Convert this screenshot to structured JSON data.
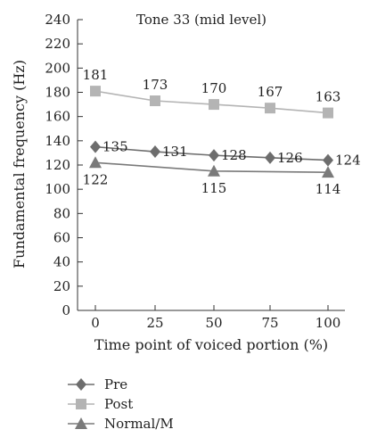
{
  "chart_data": {
    "type": "line",
    "title": "Tone 33 (mid level)",
    "xlabel": "Time point of voiced portion (%)",
    "ylabel": "Fundamental frequency (Hz)",
    "x": [
      0,
      25,
      50,
      75,
      100
    ],
    "x_tick_labels": [
      "0",
      "25",
      "50",
      "75",
      "100"
    ],
    "ylim": [
      0,
      240
    ],
    "y_ticks": [
      0,
      20,
      40,
      60,
      80,
      100,
      120,
      140,
      160,
      180,
      200,
      220,
      240
    ],
    "y_tick_labels": [
      "0",
      "20",
      "40",
      "60",
      "80",
      "100",
      "120",
      "140",
      "160",
      "180",
      "200",
      "220",
      "240"
    ],
    "grid": false,
    "legend_position": "bottom-left",
    "series": [
      {
        "name": "Pre",
        "marker": "diamond",
        "color": "#6d6d6d",
        "values": [
          135,
          131,
          128,
          126,
          124
        ],
        "labels": [
          "135",
          "131",
          "128",
          "126",
          "124"
        ]
      },
      {
        "name": "Post",
        "marker": "square",
        "color": "#b4b4b4",
        "values": [
          181,
          173,
          170,
          167,
          163
        ],
        "labels": [
          "181",
          "173",
          "170",
          "167",
          "163"
        ]
      },
      {
        "name": "Normal/M",
        "marker": "triangle",
        "color": "#7a7a7a",
        "values": [
          122,
          null,
          115,
          null,
          114
        ],
        "labels": [
          "122",
          "",
          "115",
          "",
          "114"
        ]
      }
    ]
  }
}
